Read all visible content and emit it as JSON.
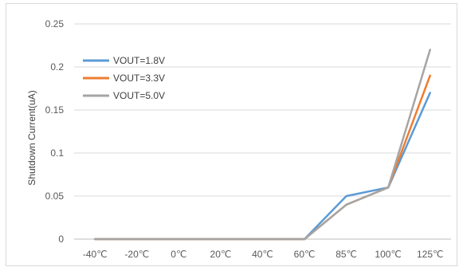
{
  "chart_data": {
    "type": "line",
    "title": "",
    "xlabel": "",
    "ylabel": "Shutdown Current(uA)",
    "categories": [
      "-40℃",
      "-20℃",
      "0℃",
      "20℃",
      "40℃",
      "60℃",
      "85℃",
      "100℃",
      "125℃"
    ],
    "ylim": [
      0,
      0.25
    ],
    "yticks": [
      "0",
      "0.05",
      "0.1",
      "0.15",
      "0.2",
      "0.25"
    ],
    "ytick_values": [
      0,
      0.05,
      0.1,
      0.15,
      0.2,
      0.25
    ],
    "grid": true,
    "legend_position": "top-left",
    "series": [
      {
        "name": "VOUT=1.8V",
        "color": "#5b9bd5",
        "values": [
          0,
          0,
          0,
          0,
          0,
          0,
          0.05,
          0.06,
          0.17
        ]
      },
      {
        "name": "VOUT=3.3V",
        "color": "#ed7d31",
        "values": [
          0,
          0,
          0,
          0,
          0,
          0,
          0.04,
          0.06,
          0.19
        ]
      },
      {
        "name": "VOUT=5.0V",
        "color": "#a5a5a5",
        "values": [
          0,
          0,
          0,
          0,
          0,
          0,
          0.04,
          0.06,
          0.22
        ]
      }
    ]
  }
}
